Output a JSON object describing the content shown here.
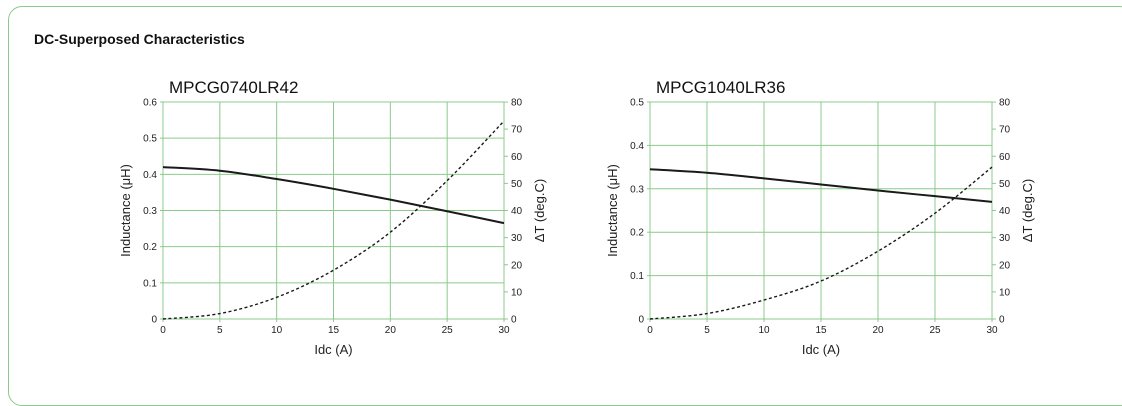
{
  "section_title": "DC-Superposed Characteristics",
  "colors": {
    "grid": "#8cc98c",
    "frame": "#8cc98c",
    "curve": "#1a1a1a"
  },
  "chart_data": [
    {
      "type": "line",
      "title": "MPCG0740LR42",
      "xlabel": "Idc (A)",
      "ylabel": "Inductance (μH)",
      "y2label": "ΔT (deg.C)",
      "xlim": [
        0,
        30
      ],
      "ylim": [
        0,
        0.6
      ],
      "y2lim": [
        0,
        80
      ],
      "xticks": [
        0,
        5,
        10,
        15,
        20,
        25,
        30
      ],
      "yticks": [
        0,
        0.1,
        0.2,
        0.3,
        0.4,
        0.5,
        0.6
      ],
      "y2ticks": [
        0,
        10,
        20,
        30,
        40,
        50,
        60,
        70,
        80
      ],
      "grid": true,
      "series": [
        {
          "axis": "left",
          "style": "solid",
          "x": [
            0,
            5,
            10,
            15,
            20,
            25,
            30
          ],
          "values": [
            0.42,
            0.41,
            0.387,
            0.36,
            0.33,
            0.298,
            0.265
          ]
        },
        {
          "axis": "right",
          "style": "dashed",
          "x": [
            0,
            5,
            10,
            15,
            20,
            25,
            30
          ],
          "values": [
            0,
            2,
            8,
            18,
            32,
            51,
            73
          ]
        }
      ]
    },
    {
      "type": "line",
      "title": "MPCG1040LR36",
      "xlabel": "Idc (A)",
      "ylabel": "Inductance (μH)",
      "y2label": "ΔT (deg.C)",
      "xlim": [
        0,
        30
      ],
      "ylim": [
        0,
        0.5
      ],
      "y2lim": [
        0,
        80
      ],
      "xticks": [
        0,
        5,
        10,
        15,
        20,
        25,
        30
      ],
      "yticks": [
        0,
        0.1,
        0.2,
        0.3,
        0.4,
        0.5
      ],
      "y2ticks": [
        0,
        10,
        20,
        30,
        40,
        50,
        60,
        70,
        80
      ],
      "grid": true,
      "series": [
        {
          "axis": "left",
          "style": "solid",
          "x": [
            0,
            5,
            10,
            15,
            20,
            25,
            30
          ],
          "values": [
            0.345,
            0.337,
            0.324,
            0.31,
            0.296,
            0.283,
            0.27
          ]
        },
        {
          "axis": "right",
          "style": "dashed",
          "x": [
            0,
            5,
            10,
            15,
            20,
            25,
            30
          ],
          "values": [
            0,
            2,
            7,
            14,
            25,
            39,
            56
          ]
        }
      ]
    }
  ]
}
